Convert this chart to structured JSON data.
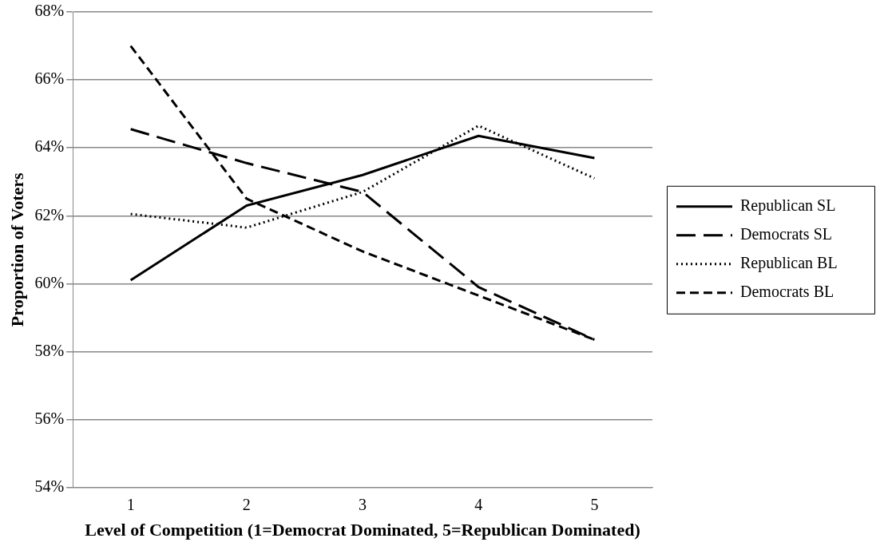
{
  "chart_data": {
    "type": "line",
    "xlabel": "Level of Competition (1=Democrat Dominated, 5=Republican Dominated)",
    "ylabel": "Proportion of Voters",
    "categories": [
      "1",
      "2",
      "3",
      "4",
      "5"
    ],
    "ylim": [
      54,
      68
    ],
    "yticks": [
      {
        "value": 54,
        "label": "54%"
      },
      {
        "value": 56,
        "label": "56%"
      },
      {
        "value": 58,
        "label": "58%"
      },
      {
        "value": 60,
        "label": "60%"
      },
      {
        "value": 62,
        "label": "62%"
      },
      {
        "value": 64,
        "label": "64%"
      },
      {
        "value": 66,
        "label": "66%"
      },
      {
        "value": 68,
        "label": "68%"
      }
    ],
    "grid": "y",
    "legend": "right",
    "marker": "none",
    "series": [
      {
        "name": "Republican SL",
        "color": "#000000",
        "line_style": "solid",
        "values": [
          60.1,
          62.3,
          63.2,
          64.35,
          63.7
        ]
      },
      {
        "name": "Democrats SL",
        "color": "#000000",
        "line_style": "dashed",
        "values": [
          64.55,
          63.55,
          62.7,
          59.9,
          58.35
        ]
      },
      {
        "name": "Republican BL",
        "color": "#000000",
        "line_style": "dotted",
        "values": [
          62.05,
          61.65,
          62.7,
          64.65,
          63.1
        ]
      },
      {
        "name": "Democrats BL",
        "color": "#000000",
        "line_style": "dashed",
        "values": [
          67.0,
          62.5,
          60.95,
          59.65,
          58.35
        ]
      }
    ]
  }
}
